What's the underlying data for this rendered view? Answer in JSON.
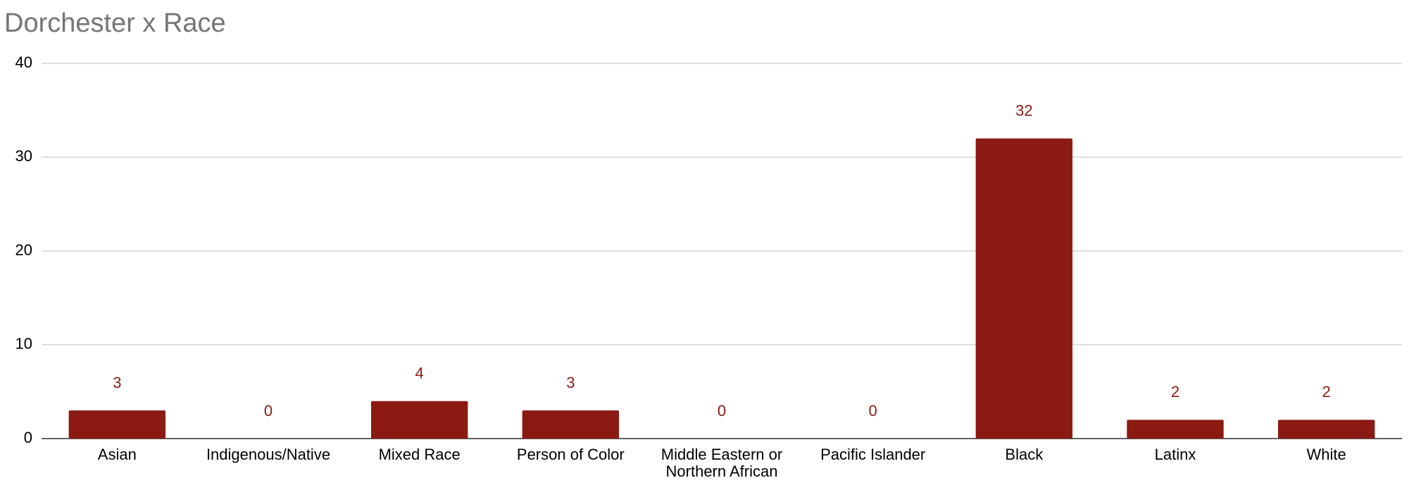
{
  "chart_data": {
    "type": "bar",
    "title": "Dorchester x Race",
    "categories": [
      "Asian",
      "Indigenous/Native",
      "Mixed Race",
      "Person of Color",
      "Middle Eastern or Northern African",
      "Pacific Islander",
      "Black",
      "Latinx",
      "White"
    ],
    "values": [
      3,
      0,
      4,
      3,
      0,
      0,
      32,
      2,
      2
    ],
    "color": "#8b1a13",
    "ylim": [
      0,
      40
    ],
    "yticks": [
      0,
      10,
      20,
      30,
      40
    ],
    "grid": true
  }
}
